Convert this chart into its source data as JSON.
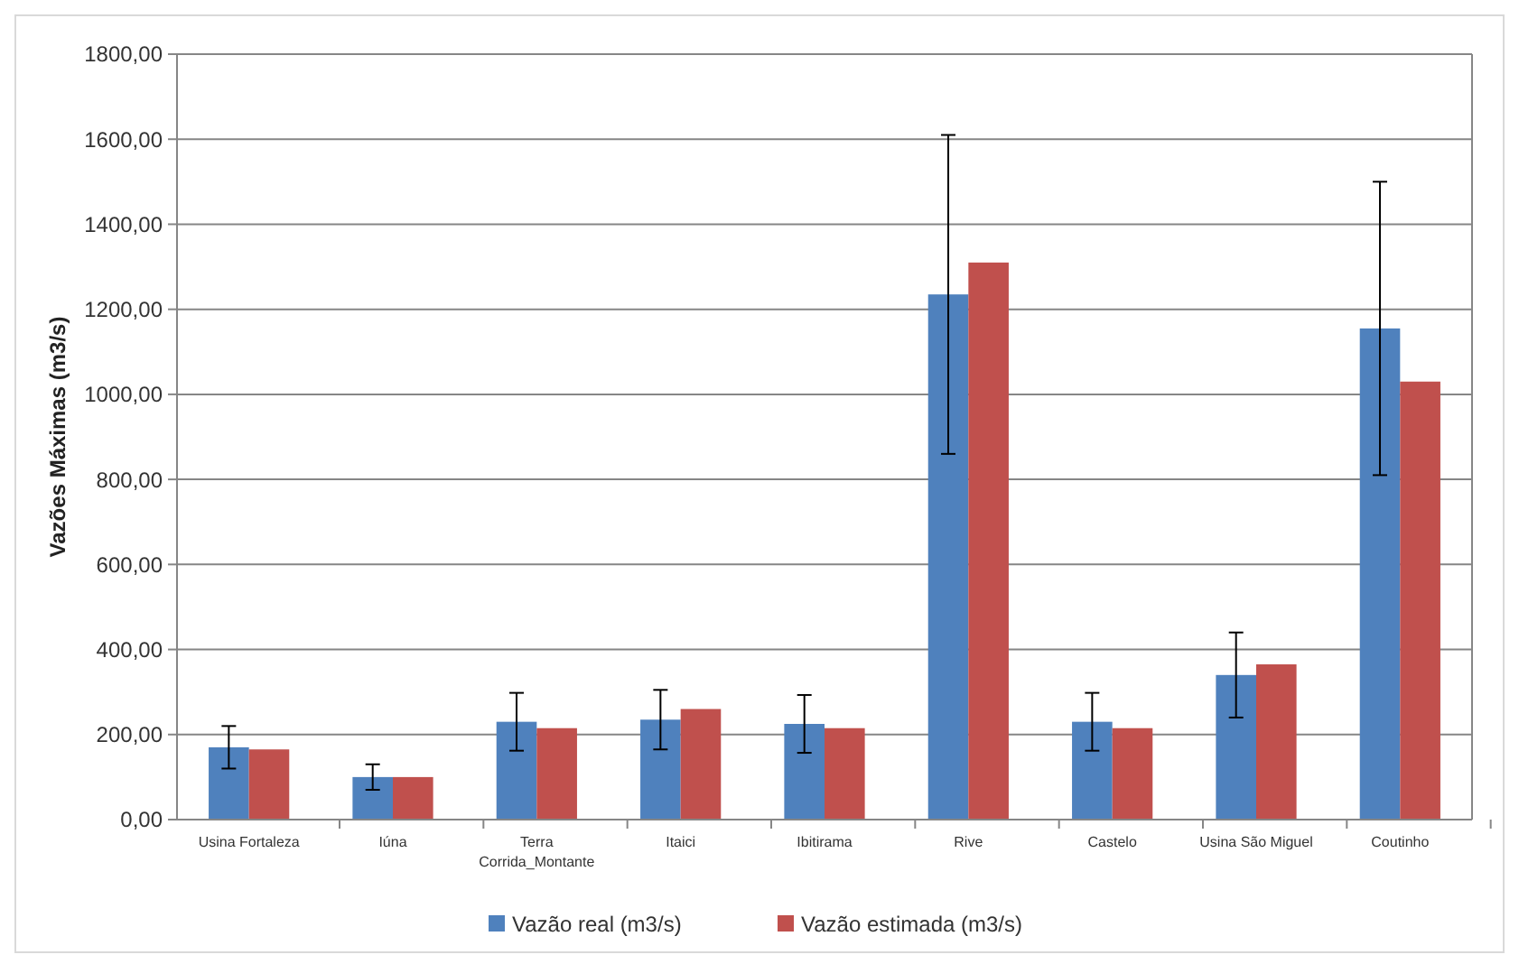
{
  "chart_data": {
    "type": "bar",
    "ylabel": "Vazões Máximas (m3/s)",
    "categories": [
      "Usina Fortaleza",
      "Iúna",
      "Terra Corrida_Montante",
      "Itaici",
      "Ibitirama",
      "Rive",
      "Castelo",
      "Usina São Miguel",
      "Coutinho"
    ],
    "series": [
      {
        "name": "Vazão real (m3/s)",
        "color": "#4f81bd",
        "values": [
          170,
          100,
          230,
          235,
          225,
          1235,
          230,
          340,
          1155
        ],
        "errors": [
          50,
          30,
          68,
          70,
          68,
          375,
          68,
          100,
          345
        ]
      },
      {
        "name": "Vazão estimada (m3/s)",
        "color": "#c0504d",
        "values": [
          165,
          100,
          215,
          260,
          215,
          1310,
          215,
          365,
          1030
        ]
      }
    ],
    "ylim": [
      0,
      1800
    ],
    "yticks": [
      {
        "value": 0,
        "label": "0,00"
      },
      {
        "value": 200,
        "label": "200,00"
      },
      {
        "value": 400,
        "label": "400,00"
      },
      {
        "value": 600,
        "label": "600,00"
      },
      {
        "value": 800,
        "label": "800,00"
      },
      {
        "value": 1000,
        "label": "1000,00"
      },
      {
        "value": 1200,
        "label": "1200,00"
      },
      {
        "value": 1400,
        "label": "1400,00"
      },
      {
        "value": 1600,
        "label": "1600,00"
      },
      {
        "value": 1800,
        "label": "1800,00"
      }
    ],
    "grid": "y",
    "legend": "bottom"
  }
}
